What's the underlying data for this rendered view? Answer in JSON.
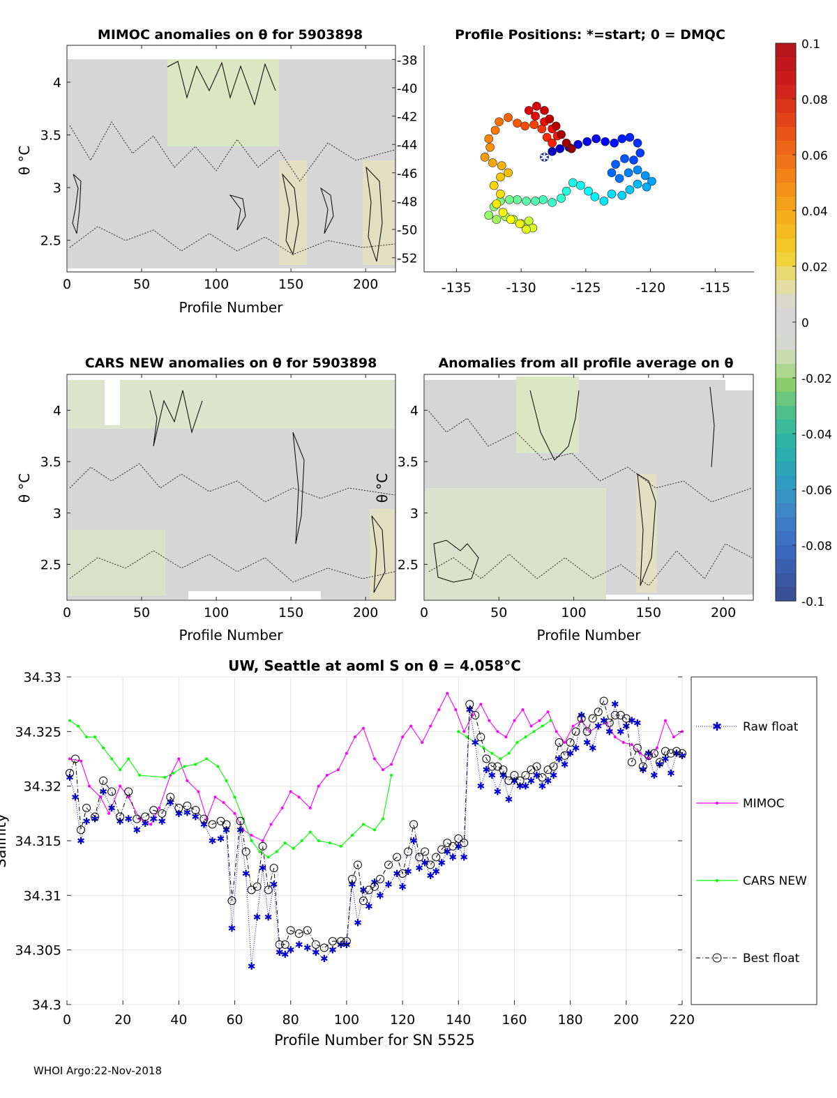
{
  "footer": "WHOI Argo:22-Nov-2018",
  "colors": {
    "mimoc": "#ff00ff",
    "cars": "#00ff00",
    "raw": "#0000cc",
    "best": "#000000",
    "field": "#d6d6d6",
    "field_light": "#dfe6c4"
  },
  "colorbar": {
    "min": -0.1,
    "max": 0.1,
    "tick_labels": [
      "0.1",
      "0.08",
      "0.06",
      "0.04",
      "0.02",
      "0",
      "-0.02",
      "-0.04",
      "-0.06",
      "-0.08",
      "-0.1"
    ],
    "tick_values": [
      0.1,
      0.08,
      0.06,
      0.04,
      0.02,
      0,
      -0.02,
      -0.04,
      -0.06,
      -0.08,
      -0.1
    ]
  },
  "chart_data": [
    {
      "id": "mimoc",
      "type": "heatmap",
      "title": "MIMOC anomalies on θ  for 5903898",
      "xlabel": "Profile Number",
      "ylabel": "θ °C",
      "xlim": [
        0,
        220
      ],
      "ylim": [
        2.2,
        4.35
      ],
      "xticks": [
        0,
        50,
        100,
        150,
        200
      ],
      "yticks": [
        2.5,
        3,
        3.5,
        4
      ],
      "right_ticks": [
        -38,
        -40,
        -42,
        -44,
        -46,
        -48,
        -50,
        -52
      ],
      "right_ylim": [
        -53,
        -37
      ]
    },
    {
      "id": "positions",
      "type": "scatter",
      "title": "Profile Positions: *=start; 0 = DMQC",
      "xlim": [
        -137.5,
        -112
      ],
      "ylim": [
        -53,
        -37
      ],
      "xticks": [
        -135,
        -130,
        -125,
        -120,
        -115
      ],
      "start": [
        -128.2,
        -44.9
      ],
      "points": [
        [
          -128.2,
          -44.9
        ],
        [
          -127.6,
          -44.5
        ],
        [
          -127.0,
          -44.3
        ],
        [
          -126.3,
          -44.2
        ],
        [
          -125.6,
          -44.0
        ],
        [
          -124.9,
          -43.8
        ],
        [
          -124.2,
          -43.6
        ],
        [
          -123.5,
          -43.8
        ],
        [
          -122.8,
          -43.9
        ],
        [
          -122.2,
          -43.6
        ],
        [
          -121.6,
          -43.5
        ],
        [
          -121.0,
          -43.9
        ],
        [
          -120.8,
          -44.6
        ],
        [
          -121.3,
          -45.1
        ],
        [
          -122.0,
          -45.0
        ],
        [
          -122.7,
          -45.4
        ],
        [
          -123.0,
          -46.0
        ],
        [
          -122.4,
          -46.4
        ],
        [
          -121.7,
          -46.0
        ],
        [
          -121.0,
          -45.8
        ],
        [
          -120.4,
          -46.2
        ],
        [
          -119.9,
          -46.6
        ],
        [
          -120.3,
          -47.0
        ],
        [
          -121.0,
          -46.8
        ],
        [
          -121.6,
          -47.2
        ],
        [
          -122.2,
          -47.6
        ],
        [
          -123.0,
          -47.5
        ],
        [
          -123.6,
          -48.0
        ],
        [
          -124.3,
          -47.7
        ],
        [
          -124.8,
          -47.3
        ],
        [
          -125.4,
          -46.9
        ],
        [
          -126.0,
          -46.7
        ],
        [
          -126.5,
          -47.3
        ],
        [
          -126.9,
          -47.8
        ],
        [
          -127.6,
          -48.1
        ],
        [
          -128.3,
          -47.9
        ],
        [
          -128.9,
          -48.0
        ],
        [
          -129.6,
          -48.0
        ],
        [
          -130.3,
          -47.9
        ],
        [
          -130.9,
          -47.9
        ],
        [
          -131.6,
          -48.0
        ],
        [
          -132.1,
          -48.4
        ],
        [
          -132.5,
          -49.0
        ],
        [
          -131.9,
          -49.3
        ],
        [
          -131.2,
          -49.1
        ],
        [
          -130.6,
          -49.3
        ],
        [
          -130.0,
          -49.6
        ],
        [
          -129.4,
          -49.4
        ],
        [
          -129.1,
          -49.9
        ],
        [
          -129.6,
          -50.0
        ],
        [
          -130.1,
          -49.6
        ],
        [
          -130.8,
          -49.3
        ],
        [
          -131.4,
          -48.8
        ],
        [
          -131.9,
          -48.2
        ],
        [
          -131.6,
          -47.5
        ],
        [
          -132.1,
          -46.9
        ],
        [
          -131.6,
          -46.3
        ],
        [
          -131.0,
          -46.0
        ],
        [
          -131.5,
          -45.5
        ],
        [
          -132.2,
          -45.3
        ],
        [
          -132.8,
          -44.9
        ],
        [
          -132.4,
          -44.2
        ],
        [
          -132.5,
          -43.6
        ],
        [
          -132.0,
          -43.0
        ],
        [
          -131.7,
          -42.4
        ],
        [
          -131.0,
          -42.1
        ],
        [
          -130.3,
          -42.5
        ],
        [
          -129.7,
          -42.7
        ],
        [
          -129.0,
          -42.6
        ],
        [
          -128.4,
          -42.9
        ],
        [
          -128.0,
          -43.5
        ],
        [
          -127.6,
          -43.9
        ],
        [
          -127.2,
          -43.4
        ],
        [
          -127.6,
          -42.9
        ],
        [
          -128.2,
          -42.4
        ],
        [
          -128.9,
          -42.0
        ],
        [
          -129.4,
          -41.6
        ],
        [
          -128.8,
          -41.3
        ],
        [
          -128.2,
          -41.6
        ],
        [
          -127.8,
          -42.2
        ],
        [
          -127.3,
          -42.7
        ],
        [
          -126.9,
          -43.3
        ],
        [
          -126.5,
          -43.9
        ],
        [
          -126.1,
          -44.3
        ]
      ]
    },
    {
      "id": "cars",
      "type": "heatmap",
      "title": "CARS NEW anomalies on θ for 5903898",
      "xlabel": "Profile Number",
      "ylabel": "θ °C",
      "xlim": [
        0,
        220
      ],
      "ylim": [
        2.15,
        4.35
      ],
      "xticks": [
        0,
        50,
        100,
        150,
        200
      ],
      "yticks": [
        2.5,
        3,
        3.5,
        4
      ]
    },
    {
      "id": "avg",
      "type": "heatmap",
      "title": "Anomalies from all profile average on θ",
      "xlabel": "Profile Number",
      "ylabel": "θ °C",
      "xlim": [
        0,
        220
      ],
      "ylim": [
        2.15,
        4.35
      ],
      "xticks": [
        0,
        50,
        100,
        150,
        200
      ],
      "yticks": [
        2.5,
        3,
        3.5,
        4
      ]
    },
    {
      "id": "salinity",
      "type": "line",
      "title": "UW, Seattle at aoml S on θ = 4.058°C",
      "xlabel": "Profile Number for SN 5525",
      "ylabel": "Salinity",
      "xlim": [
        0,
        220
      ],
      "ylim": [
        34.3,
        34.33
      ],
      "xticks": [
        0,
        20,
        40,
        60,
        80,
        100,
        120,
        140,
        160,
        180,
        200,
        220
      ],
      "yticks": [
        34.3,
        34.305,
        34.31,
        34.315,
        34.32,
        34.325,
        34.33
      ],
      "ytick_labels": [
        "34.3",
        "34.305",
        "34.31",
        "34.315",
        "34.32",
        "34.325",
        "34.33"
      ],
      "legend": [
        "Raw float",
        "MIMOC",
        "CARS NEW",
        "Best float"
      ],
      "series": [
        {
          "name": "MIMOC",
          "x": [
            1,
            5,
            8,
            12,
            15,
            19,
            22,
            26,
            30,
            33,
            37,
            40,
            43,
            47,
            50,
            53,
            56,
            60,
            63,
            66,
            70,
            73,
            77,
            80,
            83,
            87,
            90,
            93,
            97,
            100,
            103,
            106,
            110,
            113,
            116,
            120,
            123,
            127,
            130,
            133,
            136,
            139,
            142,
            145,
            148,
            151,
            154,
            157,
            160,
            163,
            166,
            169,
            172,
            175,
            178,
            181,
            184,
            187,
            190,
            193,
            196,
            199,
            202,
            205,
            208,
            211,
            214,
            217,
            220
          ],
          "y": [
            34.3225,
            34.3223,
            34.32,
            34.319,
            34.3175,
            34.32,
            34.319,
            34.317,
            34.3165,
            34.318,
            34.321,
            34.3225,
            34.3205,
            34.3195,
            34.317,
            34.319,
            34.3185,
            34.3175,
            34.316,
            34.3155,
            34.315,
            34.3165,
            34.318,
            34.3195,
            34.319,
            34.318,
            34.32,
            34.321,
            34.3215,
            34.323,
            34.3245,
            34.3253,
            34.3225,
            34.3215,
            34.322,
            34.3245,
            34.3255,
            34.324,
            34.3255,
            34.327,
            34.3285,
            34.327,
            34.325,
            34.3265,
            34.3275,
            34.326,
            34.325,
            34.3245,
            34.326,
            34.327,
            34.3255,
            34.326,
            34.3268,
            34.325,
            34.324,
            34.3255,
            34.326,
            34.325,
            34.3255,
            34.3258,
            34.3245,
            34.324,
            34.3238,
            34.323,
            34.3225,
            34.3235,
            34.326,
            34.3245,
            34.325
          ]
        },
        {
          "name": "CARS NEW",
          "x": [
            1,
            4,
            7,
            10,
            13,
            16,
            19,
            22,
            26,
            35,
            38,
            42,
            46,
            50,
            54,
            57,
            60,
            63,
            66,
            69,
            72,
            75,
            78,
            81,
            84,
            87,
            90,
            94,
            98,
            102,
            106,
            110,
            113,
            116,
            140,
            143,
            146,
            149,
            152,
            155,
            158,
            161,
            164,
            167,
            170,
            173
          ],
          "y": [
            34.326,
            34.3255,
            34.3245,
            34.3245,
            34.3235,
            34.3225,
            34.3215,
            34.3225,
            34.321,
            34.3208,
            34.3212,
            34.3218,
            34.322,
            34.3225,
            34.3218,
            34.3205,
            34.319,
            34.317,
            34.315,
            34.314,
            34.3135,
            34.314,
            34.3148,
            34.3143,
            34.315,
            34.3158,
            34.315,
            34.3148,
            34.3145,
            34.3155,
            34.3165,
            34.316,
            34.317,
            34.321,
            34.325,
            34.3245,
            34.324,
            34.3235,
            34.323,
            34.3225,
            34.323,
            34.324,
            34.3245,
            34.325,
            34.3255,
            34.326
          ]
        },
        {
          "name": "Raw float",
          "x": [
            1,
            3,
            5,
            7,
            10,
            13,
            16,
            19,
            22,
            25,
            28,
            31,
            34,
            37,
            40,
            43,
            46,
            49,
            52,
            55,
            57,
            59,
            62,
            64,
            66,
            68,
            70,
            72,
            74,
            76,
            78,
            80,
            83,
            86,
            89,
            92,
            95,
            98,
            100,
            102,
            104,
            106,
            108,
            110,
            112,
            115,
            118,
            120,
            122,
            124,
            126,
            128,
            130,
            132,
            134,
            136,
            138,
            140,
            142,
            144,
            146,
            148,
            150,
            152,
            154,
            156,
            158,
            160,
            162,
            164,
            166,
            168,
            170,
            172,
            174,
            176,
            178,
            180,
            182,
            184,
            186,
            188,
            190,
            192,
            194,
            196,
            198,
            200,
            202,
            204,
            206,
            208,
            210,
            212,
            214,
            216,
            218,
            220
          ],
          "y": [
            34.3208,
            34.319,
            34.315,
            34.3168,
            34.317,
            34.3195,
            34.318,
            34.3168,
            34.317,
            34.316,
            34.3166,
            34.317,
            34.3168,
            34.3185,
            34.3175,
            34.3176,
            34.3172,
            34.3165,
            34.315,
            34.3152,
            34.316,
            34.307,
            34.316,
            34.312,
            34.3035,
            34.308,
            34.3125,
            34.308,
            34.311,
            34.3048,
            34.3046,
            34.305,
            34.3055,
            34.3052,
            34.3048,
            34.3042,
            34.305,
            34.3055,
            34.3055,
            34.311,
            34.3075,
            34.3105,
            34.309,
            34.3112,
            34.31,
            34.311,
            34.312,
            34.3108,
            34.3122,
            34.315,
            34.3125,
            34.313,
            34.3118,
            34.3122,
            34.313,
            34.314,
            34.3135,
            34.3145,
            34.3135,
            34.327,
            34.324,
            34.32,
            34.3215,
            34.321,
            34.3195,
            34.321,
            34.3188,
            34.3205,
            34.32,
            34.32,
            34.3205,
            34.321,
            34.32,
            34.3205,
            34.321,
            34.3225,
            34.322,
            34.323,
            34.3235,
            34.3265,
            34.324,
            34.3235,
            34.3255,
            34.326,
            34.325,
            34.3275,
            34.325,
            34.3255,
            34.326,
            34.3258,
            34.3215,
            34.323,
            34.321,
            34.322,
            34.3225,
            34.3212,
            34.323,
            34.3228
          ]
        },
        {
          "name": "Best float",
          "x": [
            1,
            3,
            5,
            7,
            10,
            13,
            16,
            19,
            22,
            25,
            28,
            31,
            34,
            37,
            40,
            43,
            46,
            49,
            52,
            55,
            57,
            59,
            62,
            64,
            66,
            68,
            70,
            72,
            74,
            76,
            78,
            80,
            83,
            86,
            89,
            92,
            95,
            98,
            100,
            102,
            104,
            106,
            108,
            110,
            112,
            115,
            118,
            120,
            122,
            124,
            126,
            128,
            130,
            132,
            134,
            136,
            138,
            140,
            142,
            144,
            146,
            148,
            150,
            152,
            154,
            156,
            158,
            160,
            162,
            164,
            166,
            168,
            170,
            172,
            174,
            176,
            178,
            180,
            182,
            184,
            186,
            188,
            190,
            192,
            194,
            196,
            198,
            200,
            202,
            204,
            206,
            208,
            210,
            212,
            214,
            216,
            218,
            220
          ],
          "y": [
            34.3212,
            34.3225,
            34.316,
            34.318,
            34.3172,
            34.3205,
            34.3195,
            34.3172,
            34.3195,
            34.317,
            34.3172,
            34.3178,
            34.3175,
            34.319,
            34.318,
            34.3182,
            34.3178,
            34.317,
            34.3165,
            34.3168,
            34.3165,
            34.3095,
            34.3168,
            34.314,
            34.3105,
            34.3108,
            34.3145,
            34.3105,
            34.3125,
            34.3055,
            34.3055,
            34.3068,
            34.3065,
            34.3068,
            34.3055,
            34.3052,
            34.3058,
            34.3058,
            34.3058,
            34.3115,
            34.3128,
            34.3095,
            34.3105,
            34.3108,
            34.3115,
            34.3128,
            34.3135,
            34.312,
            34.314,
            34.3165,
            34.3135,
            34.314,
            34.3128,
            34.3135,
            34.3142,
            34.3148,
            34.3145,
            34.3152,
            34.3148,
            34.3275,
            34.3265,
            34.3245,
            34.3225,
            34.3218,
            34.3218,
            34.3215,
            34.3205,
            34.321,
            34.3205,
            34.321,
            34.3215,
            34.3218,
            34.3208,
            34.3215,
            34.3218,
            34.324,
            34.3228,
            34.324,
            34.325,
            34.3262,
            34.325,
            34.3262,
            34.3268,
            34.3278,
            34.3258,
            34.3265,
            34.3265,
            34.3262,
            34.3222,
            34.3235,
            34.3218,
            34.3228,
            34.323,
            34.3222,
            34.3232,
            34.323,
            34.3232,
            34.323
          ]
        }
      ]
    }
  ]
}
